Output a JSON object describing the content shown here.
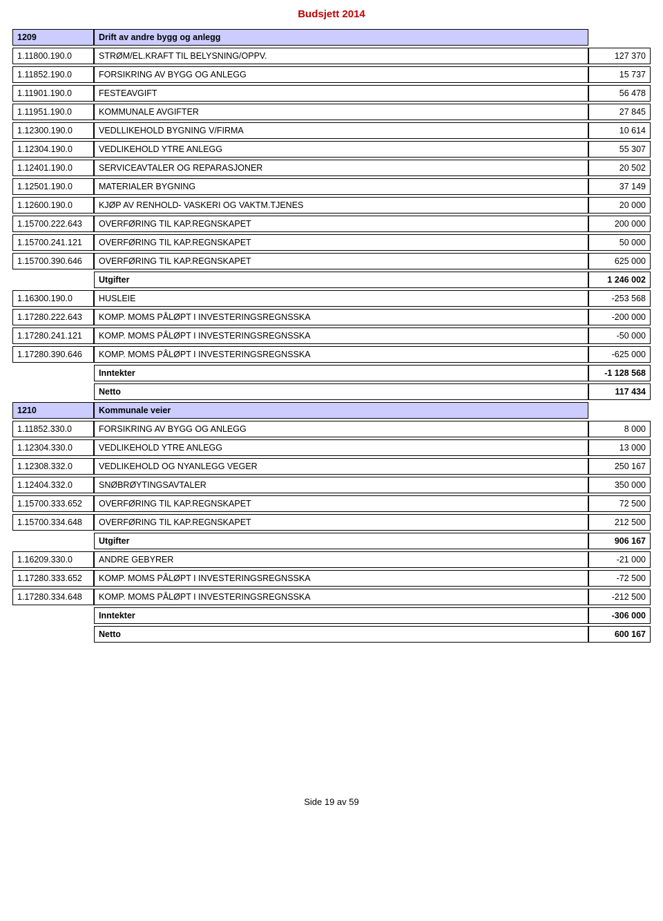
{
  "page_title": "Budsjett 2014",
  "footer": "Side 19 av 59",
  "colors": {
    "title": "#c00000",
    "section_bg": "#ccccff",
    "border": "#000000",
    "background": "#ffffff"
  },
  "rows": [
    {
      "type": "section",
      "code": "1209",
      "desc": "Drift av andre bygg og anlegg"
    },
    {
      "type": "line",
      "code": "1.11800.190.0",
      "desc": "STRØM/EL.KRAFT TIL BELYSNING/OPPV.",
      "value": "127 370"
    },
    {
      "type": "line",
      "code": "1.11852.190.0",
      "desc": "FORSIKRING AV BYGG OG ANLEGG",
      "value": "15 737"
    },
    {
      "type": "line",
      "code": "1.11901.190.0",
      "desc": "FESTEAVGIFT",
      "value": "56 478"
    },
    {
      "type": "line",
      "code": "1.11951.190.0",
      "desc": "KOMMUNALE AVGIFTER",
      "value": "27 845"
    },
    {
      "type": "line",
      "code": "1.12300.190.0",
      "desc": "VEDLLIKEHOLD BYGNING V/FIRMA",
      "value": "10 614"
    },
    {
      "type": "line",
      "code": "1.12304.190.0",
      "desc": "VEDLIKEHOLD YTRE ANLEGG",
      "value": "55 307"
    },
    {
      "type": "line",
      "code": "1.12401.190.0",
      "desc": "SERVICEAVTALER OG REPARASJONER",
      "value": "20 502"
    },
    {
      "type": "line",
      "code": "1.12501.190.0",
      "desc": "MATERIALER BYGNING",
      "value": "37 149"
    },
    {
      "type": "line",
      "code": "1.12600.190.0",
      "desc": "KJØP AV RENHOLD- VASKERI OG VAKTM.TJENES",
      "value": "20 000"
    },
    {
      "type": "line",
      "code": "1.15700.222.643",
      "desc": "OVERFØRING TIL KAP.REGNSKAPET",
      "value": "200 000"
    },
    {
      "type": "line",
      "code": "1.15700.241.121",
      "desc": "OVERFØRING TIL KAP.REGNSKAPET",
      "value": "50 000"
    },
    {
      "type": "line",
      "code": "1.15700.390.646",
      "desc": "OVERFØRING TIL KAP.REGNSKAPET",
      "value": "625 000"
    },
    {
      "type": "summary",
      "desc": "Utgifter",
      "value": "1 246 002"
    },
    {
      "type": "line",
      "code": "1.16300.190.0",
      "desc": "HUSLEIE",
      "value": "-253 568"
    },
    {
      "type": "line",
      "code": "1.17280.222.643",
      "desc": "KOMP. MOMS PÅLØPT I INVESTERINGSREGNSSKA",
      "value": "-200 000"
    },
    {
      "type": "line",
      "code": "1.17280.241.121",
      "desc": "KOMP. MOMS PÅLØPT I INVESTERINGSREGNSSKA",
      "value": "-50 000"
    },
    {
      "type": "line",
      "code": "1.17280.390.646",
      "desc": "KOMP. MOMS PÅLØPT I INVESTERINGSREGNSSKA",
      "value": "-625 000"
    },
    {
      "type": "summary",
      "desc": "Inntekter",
      "value": "-1 128 568"
    },
    {
      "type": "summary",
      "desc": "Netto",
      "value": "117 434"
    },
    {
      "type": "section",
      "code": "1210",
      "desc": "Kommunale veier"
    },
    {
      "type": "line",
      "code": "1.11852.330.0",
      "desc": "FORSIKRING AV BYGG OG ANLEGG",
      "value": "8 000"
    },
    {
      "type": "line",
      "code": "1.12304.330.0",
      "desc": "VEDLIKEHOLD YTRE ANLEGG",
      "value": "13 000"
    },
    {
      "type": "line",
      "code": "1.12308.332.0",
      "desc": "VEDLIKEHOLD OG NYANLEGG VEGER",
      "value": "250 167"
    },
    {
      "type": "line",
      "code": "1.12404.332.0",
      "desc": "SNØBRØYTINGSAVTALER",
      "value": "350 000"
    },
    {
      "type": "line",
      "code": "1.15700.333.652",
      "desc": "OVERFØRING TIL KAP.REGNSKAPET",
      "value": "72 500"
    },
    {
      "type": "line",
      "code": "1.15700.334.648",
      "desc": "OVERFØRING TIL KAP.REGNSKAPET",
      "value": "212 500"
    },
    {
      "type": "summary",
      "desc": "Utgifter",
      "value": "906 167"
    },
    {
      "type": "line",
      "code": "1.16209.330.0",
      "desc": "ANDRE GEBYRER",
      "value": "-21 000"
    },
    {
      "type": "line",
      "code": "1.17280.333.652",
      "desc": "KOMP. MOMS PÅLØPT I INVESTERINGSREGNSSKA",
      "value": "-72 500"
    },
    {
      "type": "line",
      "code": "1.17280.334.648",
      "desc": "KOMP. MOMS PÅLØPT I INVESTERINGSREGNSSKA",
      "value": "-212 500"
    },
    {
      "type": "summary",
      "desc": "Inntekter",
      "value": "-306 000"
    },
    {
      "type": "summary",
      "desc": "Netto",
      "value": "600 167"
    }
  ]
}
